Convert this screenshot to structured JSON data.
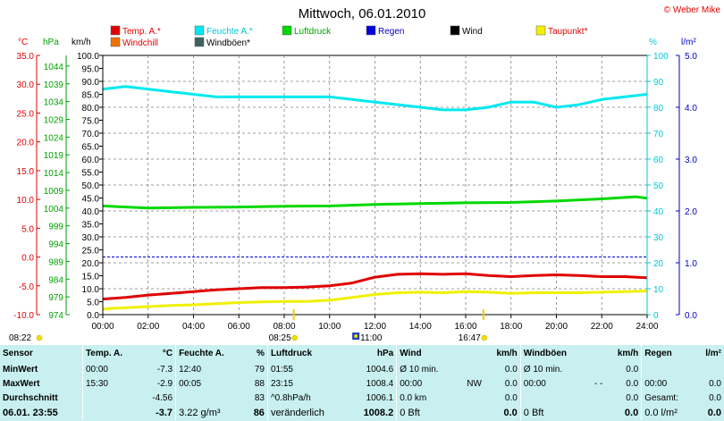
{
  "header": {
    "title": "Mittwoch, 06.01.2010",
    "credit": "© Weber Mike"
  },
  "colors": {
    "temp": "#e00000",
    "humidity": "#00e8f0",
    "pressure": "#00d800",
    "rain": "#0000e0",
    "wind": "#000000",
    "dewpoint": "#f0f000",
    "windchill": "#f07000",
    "gust": "#406060",
    "grid": "#808080",
    "stats_bg": "#c8f0f0"
  },
  "legend": [
    {
      "label": "Temp. A.*",
      "color": "#e00000",
      "text_color": "#e00000"
    },
    {
      "label": "Feuchte A.*",
      "color": "#00e8f0",
      "text_color": "#00c8d8"
    },
    {
      "label": "Luftdruck",
      "color": "#00d800",
      "text_color": "#00a000"
    },
    {
      "label": "Regen",
      "color": "#0000e0",
      "text_color": "#0000c0"
    },
    {
      "label": "Wind",
      "color": "#000000",
      "text_color": "#000000"
    },
    {
      "label": "Taupunkt*",
      "color": "#f0f000",
      "text_color": "#e00000"
    },
    {
      "label": "Windchill",
      "color": "#f07000",
      "text_color": "#e00000"
    },
    {
      "label": "Windböen*",
      "color": "#406060",
      "text_color": "#000000"
    }
  ],
  "chart_data": {
    "type": "line",
    "axes": {
      "temp": {
        "unit": "°C",
        "min": -10,
        "max": 35,
        "ticks": [
          "35.0",
          "30.0",
          "25.0",
          "20.0",
          "15.0",
          "10.0",
          "5.0",
          "0.0",
          "-5.0",
          "-10.0"
        ]
      },
      "pressure": {
        "unit": "hPa",
        "min": 974,
        "max": 1047,
        "ticks": [
          "1044",
          "1039",
          "1034",
          "1029",
          "1024",
          "1019",
          "1014",
          "1009",
          "1004",
          "999",
          "994",
          "989",
          "984",
          "979",
          "974"
        ]
      },
      "wind": {
        "unit": "km/h",
        "min": 0,
        "max": 100,
        "ticks": [
          "100.0",
          "95.0",
          "90.0",
          "85.0",
          "80.0",
          "75.0",
          "70.0",
          "65.0",
          "60.0",
          "55.0",
          "50.0",
          "45.0",
          "40.0",
          "35.0",
          "30.0",
          "25.0",
          "20.0",
          "15.0",
          "10.0",
          "5.0",
          "0.0"
        ]
      },
      "humidity": {
        "unit": "%",
        "min": 0,
        "max": 100,
        "ticks": [
          "100",
          "90",
          "80",
          "70",
          "60",
          "50",
          "40",
          "30",
          "20",
          "10",
          "0"
        ]
      },
      "rain": {
        "unit": "l/m²",
        "min": 0,
        "max": 5,
        "ticks": [
          "5.0",
          "4.0",
          "3.0",
          "2.0",
          "1.0",
          "0.0"
        ]
      }
    },
    "x_ticks": [
      "00:00",
      "02:00",
      "04:00",
      "06:00",
      "08:00",
      "10:00",
      "12:00",
      "14:00",
      "16:00",
      "18:00",
      "20:00",
      "22:00",
      "24:00"
    ],
    "x_range": [
      0,
      24
    ],
    "series": [
      {
        "name": "Feuchte A.*",
        "axis": "humidity",
        "color": "#00e8f0",
        "x": [
          0,
          1,
          2,
          3,
          4,
          5,
          6,
          7,
          8,
          9,
          10,
          11,
          12,
          13,
          14,
          15,
          16,
          17,
          18,
          19,
          20,
          21,
          22,
          23,
          24
        ],
        "y": [
          87,
          88,
          87,
          86,
          85,
          84,
          84,
          84,
          84,
          84,
          84,
          83,
          82,
          81,
          80,
          79,
          79,
          80,
          82,
          82,
          80,
          81,
          83,
          84,
          85
        ]
      },
      {
        "name": "Luftdruck",
        "axis": "pressure",
        "color": "#00d800",
        "x": [
          0,
          2,
          4,
          6,
          8,
          10,
          12,
          14,
          16,
          18,
          20,
          22,
          23.5,
          24
        ],
        "y": [
          1004.6,
          1004.0,
          1004.2,
          1004.3,
          1004.5,
          1004.6,
          1005.0,
          1005.3,
          1005.5,
          1005.6,
          1006.0,
          1006.6,
          1007.2,
          1006.8
        ]
      },
      {
        "name": "Temp. A.*",
        "axis": "temp",
        "color": "#e00000",
        "x": [
          0,
          1,
          2,
          3,
          4,
          5,
          6,
          7,
          8,
          9,
          10,
          11,
          12,
          13,
          14,
          15,
          16,
          17,
          18,
          19,
          20,
          21,
          22,
          23,
          24
        ],
        "y": [
          -7.3,
          -7.0,
          -6.6,
          -6.3,
          -6.0,
          -5.7,
          -5.5,
          -5.3,
          -5.3,
          -5.2,
          -5.0,
          -4.5,
          -3.5,
          -3.0,
          -2.9,
          -3.0,
          -2.9,
          -3.2,
          -3.4,
          -3.2,
          -3.1,
          -3.2,
          -3.4,
          -3.4,
          -3.6
        ]
      },
      {
        "name": "Taupunkt*",
        "axis": "temp",
        "color": "#f0f000",
        "x": [
          0,
          1,
          2,
          3,
          4,
          5,
          6,
          7,
          8,
          9,
          10,
          11,
          12,
          13,
          14,
          15,
          16,
          17,
          18,
          19,
          20,
          21,
          22,
          23,
          24
        ],
        "y": [
          -9.0,
          -8.8,
          -8.6,
          -8.4,
          -8.3,
          -8.1,
          -7.9,
          -7.8,
          -7.7,
          -7.7,
          -7.5,
          -7.0,
          -6.5,
          -6.2,
          -6.1,
          -6.2,
          -6.0,
          -6.1,
          -6.3,
          -6.2,
          -6.2,
          -6.2,
          -6.1,
          -6.0,
          -5.9
        ]
      }
    ],
    "reference_line": {
      "axis": "temp",
      "value": 0,
      "color": "#0000e0"
    },
    "time_markers": [
      {
        "label": "08:22",
        "x": 0,
        "icon": "sunrise"
      },
      {
        "label": "08:25",
        "x": 8.42,
        "icon": "sun"
      },
      {
        "label": "11:00",
        "x": 11,
        "icon": "sun-high"
      },
      {
        "label": "16:47",
        "x": 16.78,
        "icon": "sunset"
      }
    ]
  },
  "stats": {
    "headers": {
      "sensor": "Sensor",
      "temp": "Temp. A.",
      "temp_unit": "°C",
      "hum": "Feuchte A.",
      "hum_unit": "%",
      "press": "Luftdruck",
      "press_unit": "hPa",
      "wind": "Wind",
      "wind_unit": "km/h",
      "gust": "Windböen",
      "gust_unit": "km/h",
      "rain": "Regen",
      "rain_unit": "l/m²"
    },
    "rows": [
      {
        "label": "MinWert",
        "temp_time": "00:00",
        "temp_val": "-7.3",
        "hum_time": "12:40",
        "hum_val": "79",
        "press_time": "01:55",
        "press_val": "1004.6",
        "wind_a": "Ø 10 min.",
        "wind_b": "0.0",
        "gust_a": "Ø 10 min.",
        "gust_b": "0.0",
        "rain_a": "",
        "rain_b": ""
      },
      {
        "label": "MaxWert",
        "temp_time": "15:30",
        "temp_val": "-2.9",
        "hum_time": "00:05",
        "hum_val": "88",
        "press_time": "23:15",
        "press_val": "1008.4",
        "wind_a": "00:00",
        "wind_mid": "NW",
        "wind_b": "0.0",
        "gust_a": "00:00",
        "gust_mid": "- -",
        "gust_b": "0.0",
        "rain_a": "00:00",
        "rain_b": "0.0"
      },
      {
        "label": "Durchschnitt",
        "temp_time": "",
        "temp_val": "-4.56",
        "hum_time": "",
        "hum_val": "83",
        "press_time": "^0.8hPa/h",
        "press_val": "1006.1",
        "wind_a": "0.0 km",
        "wind_b": "0.0",
        "gust_a": "",
        "gust_b": "0.0",
        "rain_a": "Gesamt:",
        "rain_b": "0.0"
      },
      {
        "label": "06.01. 23:55",
        "temp_time": "",
        "temp_val": "-3.7",
        "hum_time": "3.22 g/m³",
        "hum_val": "86",
        "press_time": "veränderlich",
        "press_val": "1008.2",
        "wind_a": "0 Bft",
        "wind_b": "0.0",
        "gust_a": "0 Bft",
        "gust_b": "0.0",
        "rain_a": "0.0 l/m²",
        "rain_b": "0.0"
      }
    ]
  }
}
